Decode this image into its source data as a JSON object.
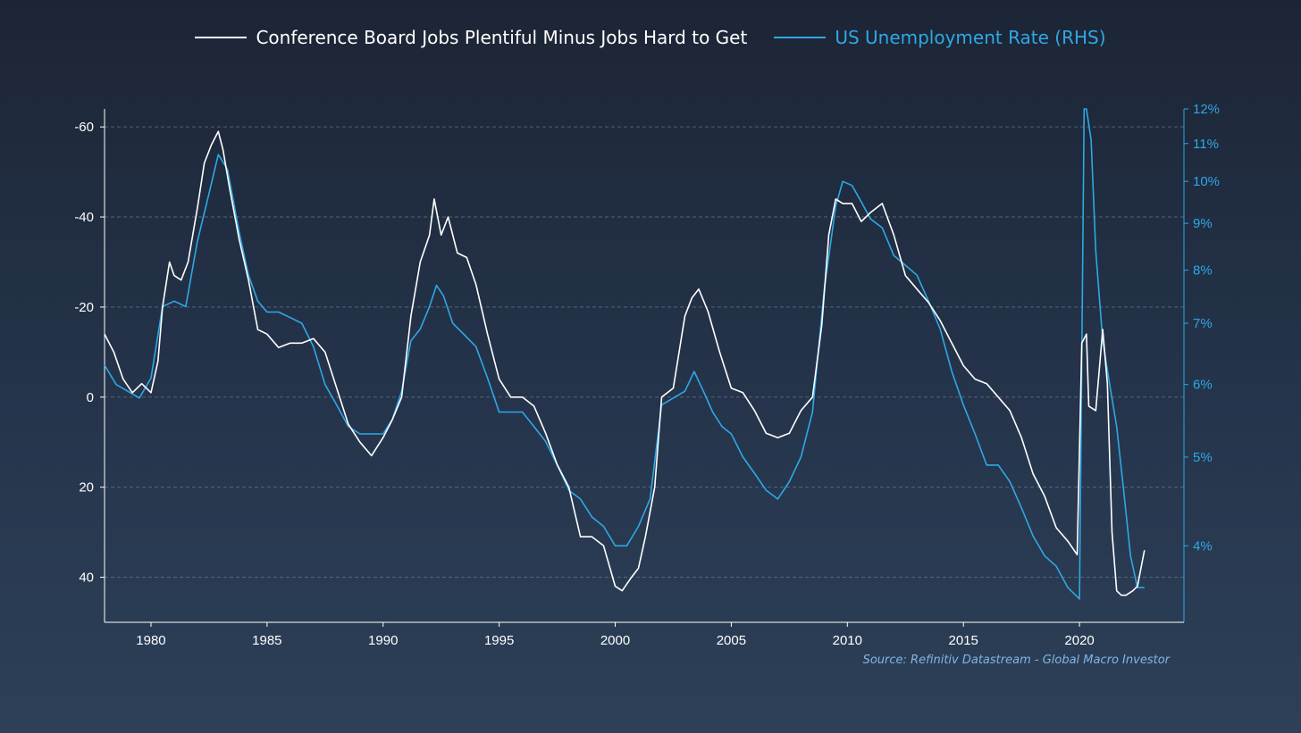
{
  "chart_data": {
    "type": "line",
    "legend_position": "top-center",
    "grid": "horizontal dashed",
    "colors": {
      "background_top": "#1c2535",
      "background_bottom": "#2d4058",
      "axis_left": "#ffffff",
      "axis_right": "#2ea8e5",
      "grid": "#6a7a8f"
    },
    "x_axis": {
      "range": [
        1978,
        2024.5
      ],
      "ticks": [
        1980,
        1985,
        1990,
        1995,
        2000,
        2005,
        2010,
        2015,
        2020
      ],
      "tick_labels": [
        "1980",
        "1985",
        "1990",
        "1995",
        "2000",
        "2005",
        "2010",
        "2015",
        "2020"
      ]
    },
    "y_left": {
      "inverted": true,
      "range": [
        -64,
        50
      ],
      "ticks": [
        -60,
        -40,
        -20,
        0,
        20,
        40
      ],
      "tick_labels": [
        "-60",
        "-40",
        "-20",
        "0",
        "20",
        "40"
      ]
    },
    "y_right": {
      "scale": "log",
      "range": [
        3.3,
        12
      ],
      "ticks": [
        4,
        5,
        6,
        7,
        8,
        9,
        10,
        11,
        12
      ],
      "tick_labels": [
        "4%",
        "5%",
        "6%",
        "7%",
        "8%",
        "9%",
        "10%",
        "11%",
        "12%"
      ]
    },
    "series": [
      {
        "name": "Conference Board Jobs Plentiful Minus Jobs Hard to Get",
        "axis": "left",
        "color": "#ffffff",
        "x": [
          1978.0,
          1978.4,
          1978.8,
          1979.2,
          1979.6,
          1980.0,
          1980.3,
          1980.5,
          1980.8,
          1981.0,
          1981.3,
          1981.6,
          1982.0,
          1982.3,
          1982.6,
          1982.9,
          1983.1,
          1983.4,
          1983.8,
          1984.2,
          1984.6,
          1985.0,
          1985.5,
          1986.0,
          1986.5,
          1987.0,
          1987.5,
          1988.0,
          1988.5,
          1989.0,
          1989.5,
          1990.0,
          1990.4,
          1990.8,
          1991.2,
          1991.6,
          1992.0,
          1992.2,
          1992.5,
          1992.8,
          1993.2,
          1993.6,
          1994.0,
          1994.5,
          1995.0,
          1995.5,
          1996.0,
          1996.5,
          1997.0,
          1997.5,
          1998.0,
          1998.5,
          1999.0,
          1999.5,
          2000.0,
          2000.3,
          2000.7,
          2001.0,
          2001.3,
          2001.7,
          2002.0,
          2002.5,
          2003.0,
          2003.3,
          2003.6,
          2004.0,
          2004.5,
          2005.0,
          2005.5,
          2006.0,
          2006.5,
          2007.0,
          2007.5,
          2008.0,
          2008.5,
          2008.9,
          2009.2,
          2009.5,
          2009.8,
          2010.2,
          2010.6,
          2011.0,
          2011.5,
          2012.0,
          2012.5,
          2013.0,
          2013.5,
          2014.0,
          2014.5,
          2015.0,
          2015.5,
          2016.0,
          2016.5,
          2017.0,
          2017.5,
          2018.0,
          2018.5,
          2019.0,
          2019.5,
          2019.9,
          2020.1,
          2020.3,
          2020.4,
          2020.7,
          2021.0,
          2021.2,
          2021.4,
          2021.6,
          2021.8,
          2022.0,
          2022.3,
          2022.5,
          2022.8
        ],
        "values": [
          -14,
          -10,
          -4,
          -1,
          -3,
          -1,
          -8,
          -20,
          -30,
          -27,
          -26,
          -30,
          -42,
          -52,
          -56,
          -59,
          -55,
          -46,
          -35,
          -26,
          -15,
          -14,
          -11,
          -12,
          -12,
          -13,
          -10,
          -2,
          6,
          10,
          13,
          9,
          5,
          0,
          -18,
          -30,
          -36,
          -44,
          -36,
          -40,
          -32,
          -31,
          -25,
          -14,
          -4,
          0,
          0,
          2,
          8,
          15,
          20,
          31,
          31,
          33,
          42,
          43,
          40,
          38,
          31,
          20,
          0,
          -2,
          -18,
          -22,
          -24,
          -19,
          -10,
          -2,
          -1,
          3,
          8,
          9,
          8,
          3,
          0,
          -16,
          -36,
          -44,
          -43,
          -43,
          -39,
          -41,
          -43,
          -36,
          -27,
          -24,
          -21,
          -17,
          -12,
          -7,
          -4,
          -3,
          0,
          3,
          9,
          17,
          22,
          29,
          32,
          35,
          -12,
          -14,
          2,
          3,
          -15,
          -3,
          30,
          43,
          44,
          44,
          43,
          42,
          34
        ]
      },
      {
        "name": "US Unemployment Rate (RHS)",
        "axis": "right",
        "color": "#2ea8e5",
        "x": [
          1978.0,
          1978.5,
          1979.0,
          1979.5,
          1980.0,
          1980.5,
          1981.0,
          1981.5,
          1982.0,
          1982.5,
          1982.9,
          1983.3,
          1983.8,
          1984.2,
          1984.6,
          1985.0,
          1985.5,
          1986.0,
          1986.5,
          1987.0,
          1987.5,
          1988.0,
          1988.5,
          1989.0,
          1989.5,
          1990.0,
          1990.4,
          1990.8,
          1991.2,
          1991.6,
          1992.0,
          1992.3,
          1992.6,
          1993.0,
          1993.5,
          1994.0,
          1994.5,
          1995.0,
          1995.5,
          1996.0,
          1996.5,
          1997.0,
          1997.5,
          1998.0,
          1998.5,
          1999.0,
          1999.5,
          2000.0,
          2000.5,
          2001.0,
          2001.5,
          2002.0,
          2002.5,
          2003.0,
          2003.4,
          2003.8,
          2004.2,
          2004.6,
          2005.0,
          2005.5,
          2006.0,
          2006.5,
          2007.0,
          2007.5,
          2008.0,
          2008.5,
          2009.0,
          2009.5,
          2009.8,
          2010.2,
          2010.6,
          2011.0,
          2011.5,
          2012.0,
          2012.5,
          2013.0,
          2013.5,
          2014.0,
          2014.5,
          2015.0,
          2015.5,
          2016.0,
          2016.5,
          2017.0,
          2017.5,
          2018.0,
          2018.5,
          2019.0,
          2019.5,
          2020.0,
          2020.2,
          2020.3,
          2020.5,
          2020.7,
          2021.0,
          2021.3,
          2021.6,
          2021.9,
          2022.2,
          2022.5,
          2022.8
        ],
        "values": [
          6.3,
          6.0,
          5.9,
          5.8,
          6.1,
          7.3,
          7.4,
          7.3,
          8.6,
          9.7,
          10.7,
          10.3,
          8.8,
          7.9,
          7.4,
          7.2,
          7.2,
          7.1,
          7.0,
          6.6,
          6.0,
          5.7,
          5.4,
          5.3,
          5.3,
          5.3,
          5.5,
          5.9,
          6.7,
          6.9,
          7.3,
          7.7,
          7.5,
          7.0,
          6.8,
          6.6,
          6.1,
          5.6,
          5.6,
          5.6,
          5.4,
          5.2,
          4.9,
          4.6,
          4.5,
          4.3,
          4.2,
          4.0,
          4.0,
          4.2,
          4.5,
          5.7,
          5.8,
          5.9,
          6.2,
          5.9,
          5.6,
          5.4,
          5.3,
          5.0,
          4.8,
          4.6,
          4.5,
          4.7,
          5.0,
          5.6,
          7.6,
          9.4,
          10.0,
          9.9,
          9.5,
          9.1,
          8.9,
          8.3,
          8.1,
          7.9,
          7.4,
          6.9,
          6.2,
          5.7,
          5.3,
          4.9,
          4.9,
          4.7,
          4.4,
          4.1,
          3.9,
          3.8,
          3.6,
          3.5,
          14.7,
          13.3,
          11.1,
          8.4,
          6.7,
          6.0,
          5.4,
          4.6,
          3.9,
          3.6,
          3.6
        ]
      }
    ]
  },
  "source": "Source: Refinitiv Datastream - Global Macro Investor"
}
